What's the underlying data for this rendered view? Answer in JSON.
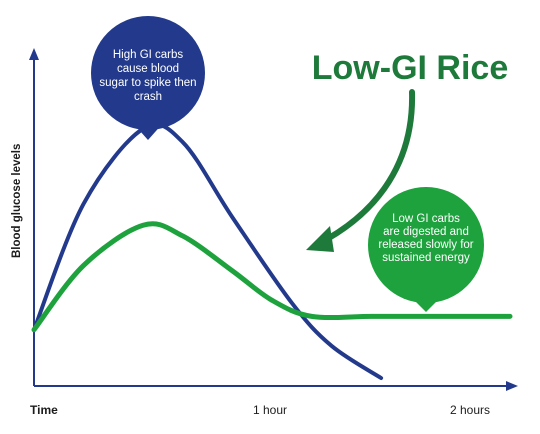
{
  "chart_data": {
    "type": "line",
    "title": "Low-GI Rice",
    "xlabel": "",
    "ylabel": "Blood glucose levels",
    "x_tick_labels": [
      "Time",
      "1 hour",
      "2 hours"
    ],
    "xlim": [
      0,
      2.4
    ],
    "ylim": [
      0,
      1
    ],
    "grid": false,
    "series": [
      {
        "name": "",
        "color": "#233a8c",
        "x": [
          0,
          0.25,
          0.55,
          0.75,
          1.0,
          1.3,
          1.5,
          1.75
        ],
        "y": [
          0.18,
          0.65,
          0.93,
          0.88,
          0.6,
          0.28,
          0.12,
          0.0
        ]
      },
      {
        "name": "",
        "color": "#1ea23d",
        "x": [
          0,
          0.25,
          0.55,
          0.75,
          1.0,
          1.2,
          1.4,
          1.7,
          2.0,
          2.4
        ],
        "y": [
          0.18,
          0.42,
          0.57,
          0.53,
          0.4,
          0.29,
          0.23,
          0.23,
          0.23,
          0.23
        ]
      }
    ],
    "annotations": [
      {
        "text": "High GI carbs cause blood sugar to spike then crash",
        "color": "#233a8c"
      },
      {
        "text": "Low GI carbs are digested and released slowly for sustained energy",
        "color": "#1ea23d"
      }
    ]
  },
  "colors": {
    "axis": "#233a8c",
    "title": "#1e7a3a",
    "arrow": "#1e7a3a"
  }
}
